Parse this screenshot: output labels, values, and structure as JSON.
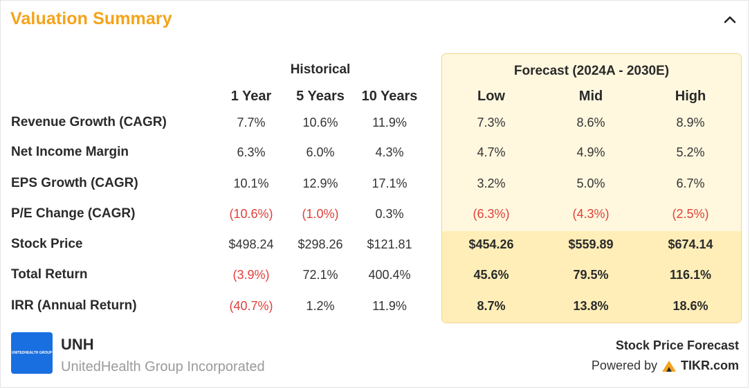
{
  "header": {
    "title": "Valuation Summary"
  },
  "groups": {
    "historical": "Historical",
    "forecast": "Forecast (2024A - 2030E)"
  },
  "columns": [
    "1 Year",
    "5 Years",
    "10 Years",
    "Low",
    "Mid",
    "High"
  ],
  "rows": [
    {
      "label": "Revenue Growth (CAGR)",
      "values": [
        "7.7%",
        "10.6%",
        "11.9%",
        "7.3%",
        "8.6%",
        "8.9%"
      ]
    },
    {
      "label": "Net Income Margin",
      "values": [
        "6.3%",
        "6.0%",
        "4.3%",
        "4.7%",
        "4.9%",
        "5.2%"
      ]
    },
    {
      "label": "EPS Growth (CAGR)",
      "values": [
        "10.1%",
        "12.9%",
        "17.1%",
        "3.2%",
        "5.0%",
        "6.7%"
      ]
    },
    {
      "label": "P/E Change (CAGR)",
      "values": [
        "(10.6%)",
        "(1.0%)",
        "0.3%",
        "(6.3%)",
        "(4.3%)",
        "(2.5%)"
      ]
    },
    {
      "label": "Stock Price",
      "values": [
        "$498.24",
        "$298.26",
        "$121.81",
        "$454.26",
        "$559.89",
        "$674.14"
      ]
    },
    {
      "label": "Total Return",
      "values": [
        "(3.9%)",
        "72.1%",
        "400.4%",
        "45.6%",
        "79.5%",
        "116.1%"
      ]
    },
    {
      "label": "IRR (Annual Return)",
      "values": [
        "(40.7%)",
        "1.2%",
        "11.9%",
        "8.7%",
        "13.8%",
        "18.6%"
      ]
    }
  ],
  "company": {
    "ticker": "UNH",
    "name": "UnitedHealth Group Incorporated",
    "logo_text": "UNITEDHEALTH GROUP",
    "logo_color": "#1a6fe0"
  },
  "footer": {
    "forecast_label": "Stock Price Forecast",
    "powered_by": "Powered by",
    "brand": "TIKR.com"
  },
  "colors": {
    "title": "#f5a31a",
    "negative": "#e0403a",
    "forecast_bg": "#fff8df",
    "forecast_highlight": "#ffeeb8",
    "forecast_border": "#f0d58a"
  },
  "icons": {
    "collapse": "chevron-up-icon",
    "tikr": "tikr-logo-icon"
  }
}
